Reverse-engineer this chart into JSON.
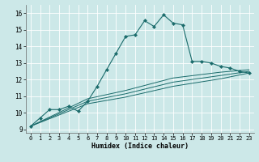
{
  "xlabel": "Humidex (Indice chaleur)",
  "bg_color": "#cce8e8",
  "grid_color": "#ffffff",
  "line_color": "#1a6b6b",
  "xlim": [
    -0.5,
    23.5
  ],
  "ylim": [
    8.8,
    16.5
  ],
  "xticks": [
    0,
    1,
    2,
    3,
    4,
    5,
    6,
    7,
    8,
    9,
    10,
    11,
    12,
    13,
    14,
    15,
    16,
    17,
    18,
    19,
    20,
    21,
    22,
    23
  ],
  "yticks": [
    9,
    10,
    11,
    12,
    13,
    14,
    15,
    16
  ],
  "main_line": {
    "x": [
      0,
      1,
      2,
      3,
      4,
      5,
      6,
      7,
      8,
      9,
      10,
      11,
      12,
      13,
      14,
      15,
      16,
      17,
      18,
      19,
      20,
      21,
      22,
      23
    ],
    "y": [
      9.2,
      9.7,
      10.2,
      10.2,
      10.4,
      10.1,
      10.7,
      11.6,
      12.6,
      13.6,
      14.6,
      14.7,
      15.55,
      15.2,
      15.9,
      15.4,
      15.3,
      13.1,
      13.1,
      13.0,
      12.8,
      12.7,
      12.5,
      12.4
    ]
  },
  "extra_lines": [
    {
      "x": [
        0,
        6,
        10,
        15,
        20,
        23
      ],
      "y": [
        9.2,
        10.55,
        10.95,
        11.6,
        12.05,
        12.4
      ]
    },
    {
      "x": [
        0,
        6,
        10,
        15,
        20,
        23
      ],
      "y": [
        9.2,
        10.7,
        11.15,
        11.85,
        12.25,
        12.5
      ]
    },
    {
      "x": [
        0,
        6,
        10,
        15,
        20,
        23
      ],
      "y": [
        9.2,
        10.85,
        11.35,
        12.1,
        12.45,
        12.6
      ]
    }
  ]
}
